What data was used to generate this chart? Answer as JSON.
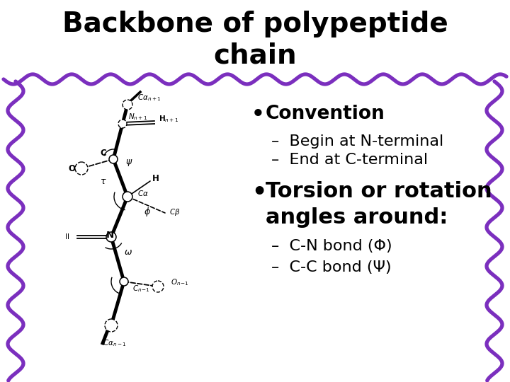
{
  "title_line1": "Backbone of polypeptide",
  "title_line2": "chain",
  "title_fontsize": 28,
  "title_font": "Comic Sans MS",
  "bg_color": "#ffffff",
  "wavy_color": "#7B2FBE",
  "wavy_linewidth": 3.8,
  "bullet1_text": "Convention",
  "bullet1_sub1": "Begin at N-terminal",
  "bullet1_sub2": "End at C-terminal",
  "bullet2_line1": "Torsion or rotation",
  "bullet2_line2": "angles around:",
  "bullet2_sub1": "C-N bond (Φ)",
  "bullet2_sub2": "C-C bond (Ψ)",
  "text_color": "#000000",
  "bullet1_fontsize": 19,
  "bullet2_fontsize": 22,
  "sub_fontsize": 16
}
